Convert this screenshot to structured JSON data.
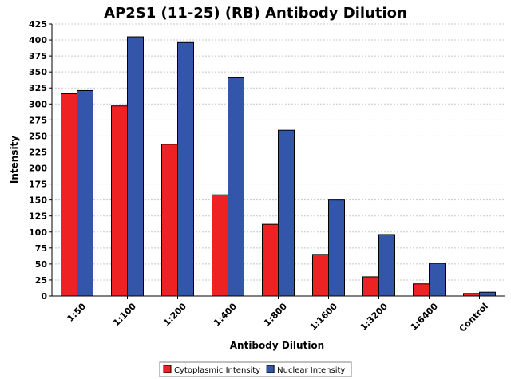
{
  "chart_data": {
    "type": "bar",
    "title": "AP2S1 (11-25) (RB) Antibody Dilution",
    "xlabel": "Antibody Dilution",
    "ylabel": "Intensity",
    "ylim": [
      0,
      425
    ],
    "yticks": [
      0,
      25,
      50,
      75,
      100,
      125,
      150,
      175,
      200,
      225,
      250,
      275,
      300,
      325,
      350,
      375,
      400,
      425
    ],
    "grid": true,
    "legend_position": "bottom",
    "categories": [
      "1:50",
      "1:100",
      "1:200",
      "1:400",
      "1:800",
      "1:1600",
      "1:3200",
      "1:6400",
      "Control"
    ],
    "series": [
      {
        "name": "Cytoplasmic Intensity",
        "color": "#ee2222",
        "values": [
          316,
          297,
          237,
          158,
          112,
          65,
          30,
          19,
          4
        ]
      },
      {
        "name": "Nuclear Intensity",
        "color": "#3355aa",
        "values": [
          321,
          405,
          396,
          341,
          259,
          150,
          96,
          51,
          6
        ]
      }
    ]
  }
}
